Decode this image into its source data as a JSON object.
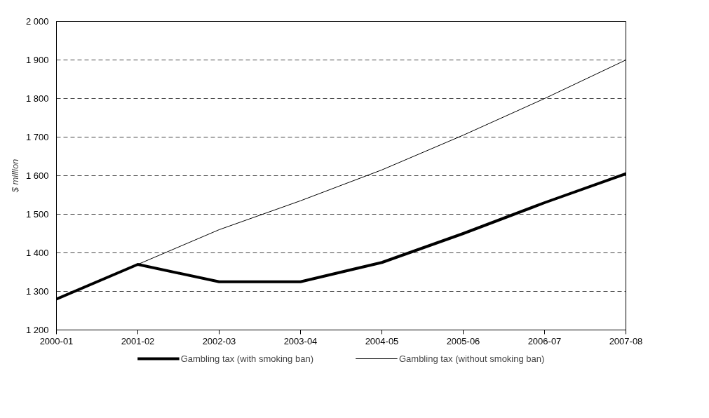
{
  "chart_data": {
    "type": "line",
    "ylabel": "$ million",
    "categories": [
      "2000-01",
      "2001-02",
      "2002-03",
      "2003-04",
      "2004-05",
      "2005-06",
      "2006-07",
      "2007-08"
    ],
    "series": [
      {
        "name": "Gambling tax (with smoking ban)",
        "color": "#000000",
        "values": [
          1280,
          1370,
          1325,
          1325,
          1375,
          1450,
          1530,
          1605
        ]
      },
      {
        "name": "Gambling tax (without smoking ban)",
        "color": "#000000",
        "values": [
          1280,
          1370,
          1460,
          1535,
          1615,
          1705,
          1800,
          1900
        ]
      }
    ],
    "ylim": [
      1200,
      2000
    ],
    "yticks": [
      {
        "value": 1200,
        "label": "1 200"
      },
      {
        "value": 1300,
        "label": "1 300"
      },
      {
        "value": 1400,
        "label": "1 400"
      },
      {
        "value": 1500,
        "label": "1 500"
      },
      {
        "value": 1600,
        "label": "1 600"
      },
      {
        "value": 1700,
        "label": "1 700"
      },
      {
        "value": 1800,
        "label": "1 800"
      },
      {
        "value": 1900,
        "label": "1 900"
      },
      {
        "value": 2000,
        "label": "2 000"
      }
    ],
    "grid": "y",
    "legend": "bottom",
    "marker": "none",
    "line_style": "solid"
  }
}
